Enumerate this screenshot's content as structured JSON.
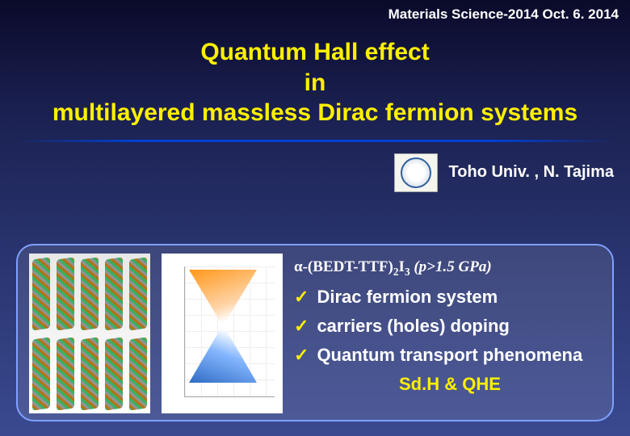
{
  "header": {
    "conference": "Materials Science-2014",
    "date": "Oct. 6. 2014"
  },
  "title": {
    "line1": "Quantum Hall effect",
    "line2": "in",
    "line3": "multilayered massless Dirac fermion systems"
  },
  "affiliation": {
    "text": "Toho Univ. , N. Tajima"
  },
  "panel": {
    "formula_prefix": "α-(BEDT-TTF)",
    "formula_sub1": "2",
    "formula_mid": "I",
    "formula_sub2": "3",
    "formula_cond": " (p>1.5 GPa)",
    "items": [
      "Dirac fermion system",
      "carriers (holes) doping",
      "Quantum transport phenomena"
    ],
    "footer": "Sd.H & QHE",
    "check_glyph": "✓"
  },
  "style": {
    "accent_color": "#fff000",
    "text_color": "#ffffff",
    "panel_border": "#80a0ff",
    "bg_top": "#0a0a2a",
    "bg_bottom": "#3a4a90"
  }
}
